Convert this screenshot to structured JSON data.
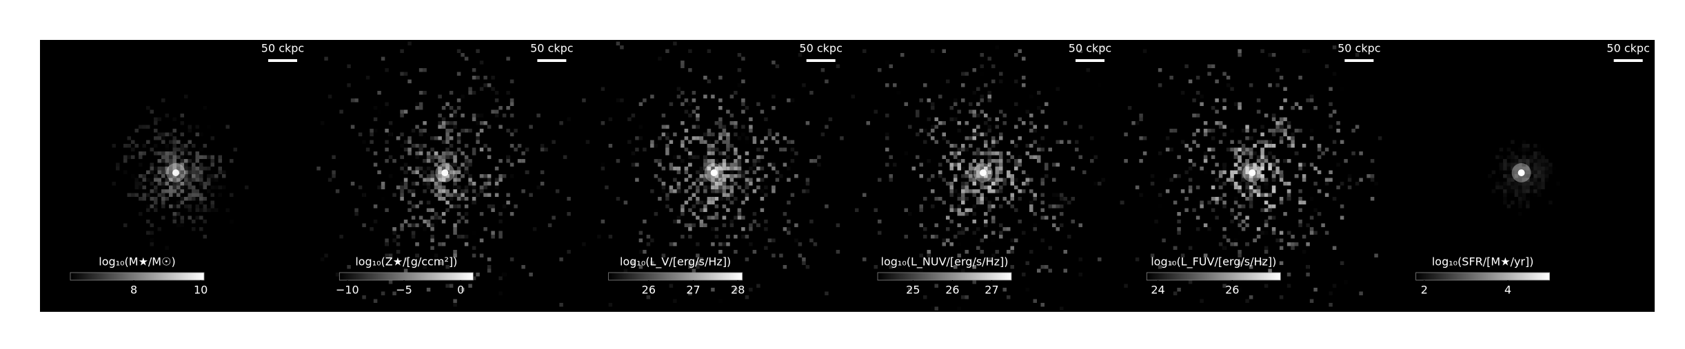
{
  "chart_data": {
    "type": "image-panels",
    "panels": [
      {
        "scale_label": "50 ckpc",
        "colorbar_label": "log₁₀(M★/M☉)",
        "clim": [
          6.1,
          10.1
        ],
        "cticks": [
          8,
          10
        ]
      },
      {
        "scale_label": "50 ckpc",
        "colorbar_label": "log₁₀(Z★/[g/ccm²])",
        "clim": [
          -10.7,
          1.1
        ],
        "cticks": [
          {
            "value": -10,
            "label": "−10"
          },
          {
            "value": -5,
            "label": "−5"
          },
          0
        ]
      },
      {
        "scale_label": "50 ckpc",
        "colorbar_label": "log₁₀(L_V/[erg/s/Hz])",
        "clim": [
          25.1,
          28.1
        ],
        "cticks": [
          26,
          27,
          28
        ]
      },
      {
        "scale_label": "50 ckpc",
        "colorbar_label": "log₁₀(L_NUV/[erg/s/Hz])",
        "clim": [
          24.1,
          27.5
        ],
        "cticks": [
          25,
          26,
          27
        ]
      },
      {
        "scale_label": "50 ckpc",
        "colorbar_label": "log₁₀(L_FUV/[erg/s/Hz])",
        "clim": [
          23.7,
          27.3
        ],
        "cticks": [
          24,
          26
        ]
      },
      {
        "scale_label": "50 ckpc",
        "colorbar_label": "log₁₀(SFR/[M★/yr])",
        "clim": [
          1.8,
          5.0
        ],
        "cticks": [
          2,
          4
        ]
      }
    ]
  }
}
